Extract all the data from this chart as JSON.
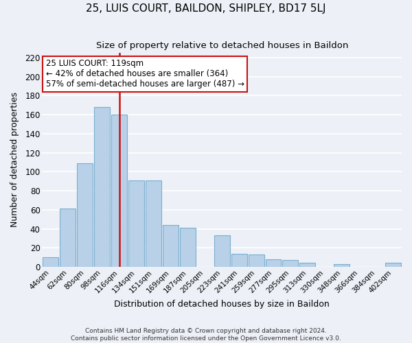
{
  "title": "25, LUIS COURT, BAILDON, SHIPLEY, BD17 5LJ",
  "subtitle": "Size of property relative to detached houses in Baildon",
  "xlabel": "Distribution of detached houses by size in Baildon",
  "ylabel": "Number of detached properties",
  "bar_labels": [
    "44sqm",
    "62sqm",
    "80sqm",
    "98sqm",
    "116sqm",
    "134sqm",
    "151sqm",
    "169sqm",
    "187sqm",
    "205sqm",
    "223sqm",
    "241sqm",
    "259sqm",
    "277sqm",
    "295sqm",
    "313sqm",
    "330sqm",
    "348sqm",
    "366sqm",
    "384sqm",
    "402sqm"
  ],
  "bar_values": [
    10,
    61,
    109,
    168,
    160,
    91,
    91,
    44,
    41,
    0,
    33,
    14,
    13,
    8,
    7,
    4,
    0,
    3,
    0,
    0,
    4
  ],
  "bar_color_normal": "#b8d0e8",
  "bar_edge_color": "#7aaece",
  "red_line_index": 4,
  "red_line_color": "#cc1111",
  "annotation_text_line1": "25 LUIS COURT: 119sqm",
  "annotation_text_line2": "← 42% of detached houses are smaller (364)",
  "annotation_text_line3": "57% of semi-detached houses are larger (487) →",
  "annotation_box_facecolor": "#ffffff",
  "annotation_box_edgecolor": "#cc1111",
  "ylim": [
    0,
    225
  ],
  "yticks": [
    0,
    20,
    40,
    60,
    80,
    100,
    120,
    140,
    160,
    180,
    200,
    220
  ],
  "footer_line1": "Contains HM Land Registry data © Crown copyright and database right 2024.",
  "footer_line2": "Contains public sector information licensed under the Open Government Licence v3.0.",
  "bg_color": "#edf1f7",
  "grid_color": "#ffffff",
  "figsize": [
    6.0,
    5.0
  ],
  "dpi": 100
}
